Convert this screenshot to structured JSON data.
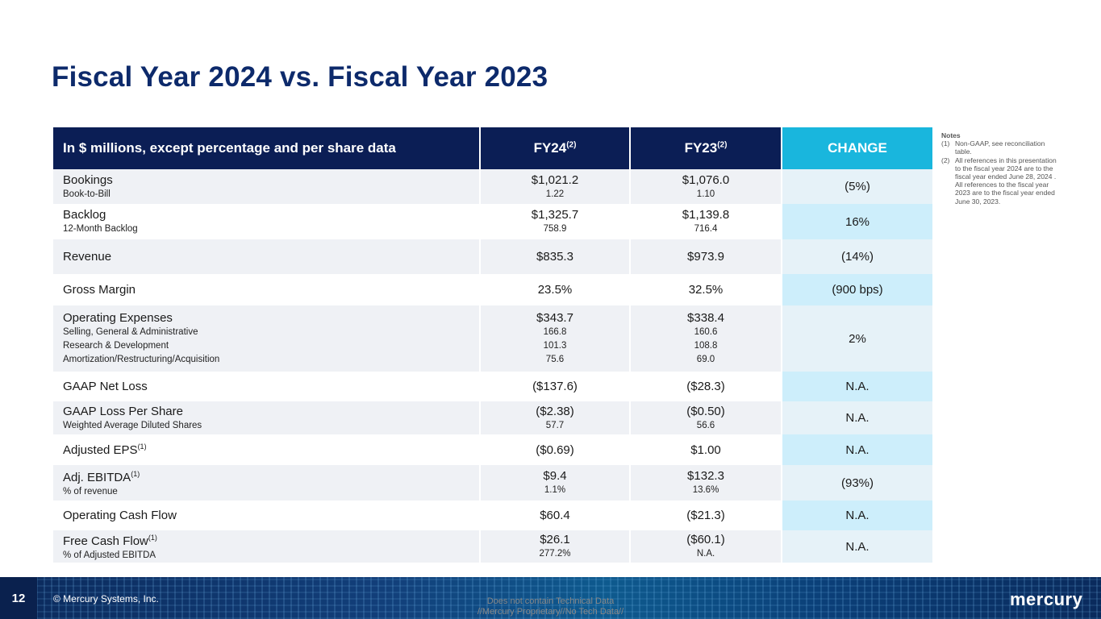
{
  "slide": {
    "title": "Fiscal Year 2024 vs. Fiscal Year 2023",
    "page_number": "12",
    "copyright": "© Mercury Systems, Inc.",
    "classification_line1": "Does not contain Technical Data",
    "classification_line2": "//Mercury Proprietary//No Tech Data//",
    "logo_text": "mercury"
  },
  "table": {
    "header": {
      "label": "In $ millions, except percentage and per share data",
      "fy24": "FY24",
      "fy24_note": "(2)",
      "fy23": "FY23",
      "fy23_note": "(2)",
      "change": "CHANGE"
    },
    "rows": [
      {
        "label": "Bookings",
        "fy24": "$1,021.2",
        "fy23": "$1,076.0",
        "change": "(5%)",
        "sub": [
          {
            "label": "Book-to-Bill",
            "fy24": "1.22",
            "fy23": "1.10"
          }
        ]
      },
      {
        "label": "Backlog",
        "fy24": "$1,325.7",
        "fy23": "$1,139.8",
        "change": "16%",
        "sub": [
          {
            "label": "12-Month Backlog",
            "fy24": "758.9",
            "fy23": "716.4"
          }
        ]
      },
      {
        "label": "Revenue",
        "fy24": "$835.3",
        "fy23": "$973.9",
        "change": "(14%)"
      },
      {
        "label": "Gross Margin",
        "fy24": "23.5%",
        "fy23": "32.5%",
        "change": "(900 bps)"
      },
      {
        "label": "Operating Expenses",
        "fy24": "$343.7",
        "fy23": "$338.4",
        "change": "2%",
        "sub": [
          {
            "label": "Selling, General & Administrative",
            "fy24": "166.8",
            "fy23": "160.6"
          },
          {
            "label": "Research & Development",
            "fy24": "101.3",
            "fy23": "108.8"
          },
          {
            "label": "Amortization/Restructuring/Acquisition",
            "fy24": "75.6",
            "fy23": "69.0"
          }
        ]
      },
      {
        "label": "GAAP Net Loss",
        "fy24": "($137.6)",
        "fy23": "($28.3)",
        "change": "N.A."
      },
      {
        "label": "GAAP Loss Per Share",
        "fy24": "($2.38)",
        "fy23": "($0.50)",
        "change": "N.A.",
        "sub": [
          {
            "label": "Weighted Average Diluted Shares",
            "fy24": "57.7",
            "fy23": "56.6"
          }
        ]
      },
      {
        "label": "Adjusted EPS",
        "note": "(1)",
        "fy24": "($0.69)",
        "fy23": "$1.00",
        "change": "N.A."
      },
      {
        "label": "Adj. EBITDA",
        "note": "(1)",
        "fy24": "$9.4",
        "fy23": "$132.3",
        "change": "(93%)",
        "sub": [
          {
            "label": "% of revenue",
            "fy24": "1.1%",
            "fy23": "13.6%"
          }
        ]
      },
      {
        "label": "Operating Cash Flow",
        "fy24": "$60.4",
        "fy23": "($21.3)",
        "change": "N.A."
      },
      {
        "label": "Free Cash Flow",
        "note": "(1)",
        "fy24": "$26.1",
        "fy23": "($60.1)",
        "change": "N.A.",
        "sub": [
          {
            "label": "% of Adjusted EBITDA",
            "fy24": "277.2%",
            "fy23": "N.A."
          }
        ]
      }
    ]
  },
  "notes": {
    "heading": "Notes",
    "items": [
      {
        "num": "(1)",
        "text": "Non-GAAP, see reconciliation table."
      },
      {
        "num": "(2)",
        "text": "All references in this presentation to the fiscal year 2024 are to the fiscal year ended June 28, 2024 . All references to the fiscal year 2023 are to the fiscal year ended June 30, 2023."
      }
    ]
  },
  "colors": {
    "title": "#0d2a6b",
    "header_bg": "#0b1e55",
    "change_header_bg": "#19b6dd",
    "change_light": "#e6f2f8",
    "change_bright": "#cdeefb",
    "row_grey": "#eff1f5"
  }
}
